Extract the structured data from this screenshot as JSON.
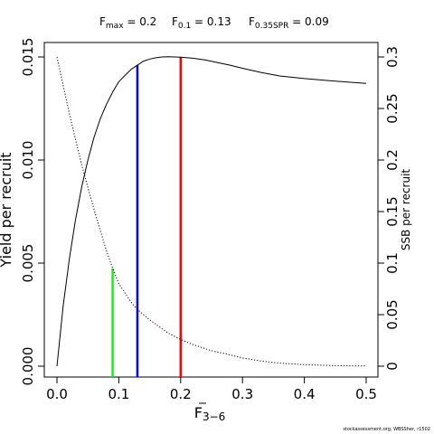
{
  "chart_data": {
    "type": "line",
    "xlabel": "F",
    "xlabel_sub": "3−6",
    "ylabel_left": "Yield per recruit",
    "ylabel_right": "SSB per recruit",
    "xlim": [
      0,
      0.5
    ],
    "ylim_left": [
      0,
      0.015
    ],
    "ylim_right": [
      0,
      0.3
    ],
    "x_ticks": [
      "0.0",
      "0.1",
      "0.2",
      "0.3",
      "0.4",
      "0.5"
    ],
    "y_ticks_left": [
      "0.000",
      "0.005",
      "0.010",
      "0.015"
    ],
    "y_ticks_right": [
      "0",
      "0.05",
      "0.1",
      "0.15",
      "0.2",
      "0.25",
      "0.3"
    ],
    "grid": false,
    "legend": "none",
    "reference_points": [
      {
        "label": "F",
        "sub": "max",
        "value": "0.2",
        "color": "#ff0000",
        "f": 0.2
      },
      {
        "label": "F",
        "sub": "0.1",
        "value": "0.13",
        "color": "#0000ff",
        "f": 0.13
      },
      {
        "label": "F",
        "sub": "0.35SPR",
        "value": "0.09",
        "color": "#00ff00",
        "f": 0.09
      }
    ],
    "series": [
      {
        "axis": "left",
        "style": "solid",
        "color": "#000000",
        "x": [
          0,
          0.01,
          0.02,
          0.03,
          0.04,
          0.05,
          0.06,
          0.07,
          0.08,
          0.09,
          0.1,
          0.11,
          0.12,
          0.13,
          0.14,
          0.15,
          0.16,
          0.17,
          0.18,
          0.19,
          0.2,
          0.22,
          0.24,
          0.26,
          0.28,
          0.3,
          0.33,
          0.36,
          0.4,
          0.45,
          0.5
        ],
        "y": [
          0,
          0.0029,
          0.0052,
          0.0071,
          0.0087,
          0.01,
          0.0111,
          0.012,
          0.0127,
          0.0133,
          0.0138,
          0.0141,
          0.0144,
          0.0146,
          0.0148,
          0.0149,
          0.01496,
          0.015,
          0.01501,
          0.015,
          0.01499,
          0.01494,
          0.01485,
          0.01473,
          0.0146,
          0.01445,
          0.01425,
          0.01408,
          0.01395,
          0.01383,
          0.01372
        ]
      },
      {
        "axis": "right",
        "style": "dotted",
        "color": "#000000",
        "x": [
          0,
          0.02,
          0.04,
          0.06,
          0.08,
          0.09,
          0.1,
          0.12,
          0.13,
          0.15,
          0.18,
          0.2,
          0.22,
          0.25,
          0.28,
          0.3,
          0.33,
          0.36,
          0.4,
          0.45,
          0.5
        ],
        "y": [
          0.3,
          0.245,
          0.195,
          0.152,
          0.112,
          0.095,
          0.08,
          0.062,
          0.055,
          0.045,
          0.032,
          0.026,
          0.021,
          0.015,
          0.011,
          0.008,
          0.005,
          0.003,
          0.0015,
          0.0005,
          0.0002
        ]
      }
    ]
  },
  "footer": "stockassessment.org, WBSSher, r1502"
}
